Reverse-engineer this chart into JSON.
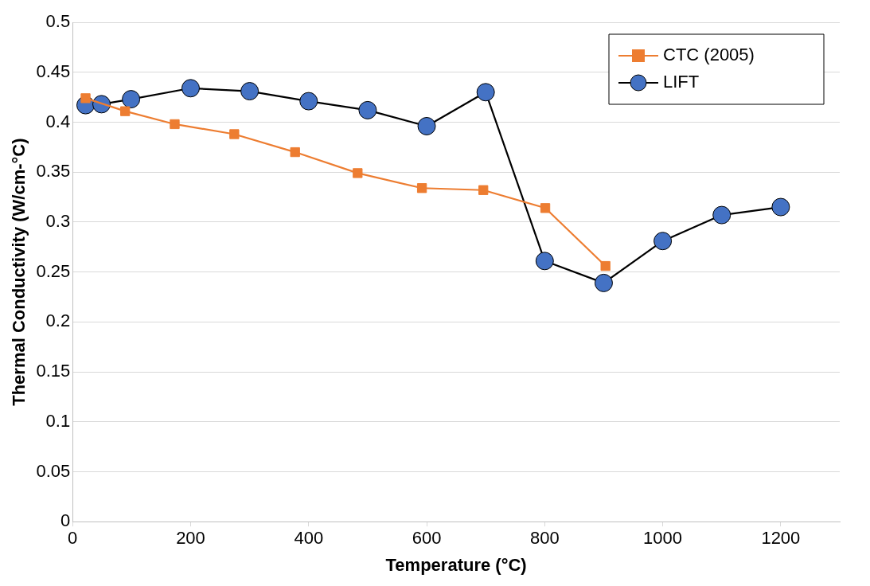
{
  "chart_data": {
    "type": "line",
    "xlabel": "Temperature (°C)",
    "ylabel": "Thermal Conductivity (W/cm-°C)",
    "xlim": [
      0,
      1300
    ],
    "xticks": [
      0,
      200,
      400,
      600,
      800,
      1000,
      1200
    ],
    "ylim": [
      0,
      0.5
    ],
    "yticks": [
      0,
      0.05,
      0.1,
      0.15,
      0.2,
      0.25,
      0.3,
      0.35,
      0.4,
      0.45,
      0.5
    ],
    "grid": "y",
    "legend": "top right",
    "series": [
      {
        "name": "CTC (2005)",
        "color": "#ed7d31",
        "marker": "square",
        "x": [
          22,
          89,
          173,
          274,
          377,
          483,
          592,
          696,
          801,
          903
        ],
        "values": [
          0.424,
          0.411,
          0.398,
          0.388,
          0.37,
          0.349,
          0.334,
          0.332,
          0.314,
          0.256
        ]
      },
      {
        "name": "LIFT",
        "color": "#4472c4",
        "marker": "circle",
        "x": [
          22,
          49,
          99,
          200,
          300,
          400,
          500,
          600,
          700,
          800,
          900,
          1000,
          1100,
          1200
        ],
        "values": [
          0.417,
          0.418,
          0.423,
          0.434,
          0.431,
          0.421,
          0.412,
          0.396,
          0.43,
          0.261,
          0.239,
          0.281,
          0.307,
          0.315
        ]
      }
    ]
  }
}
